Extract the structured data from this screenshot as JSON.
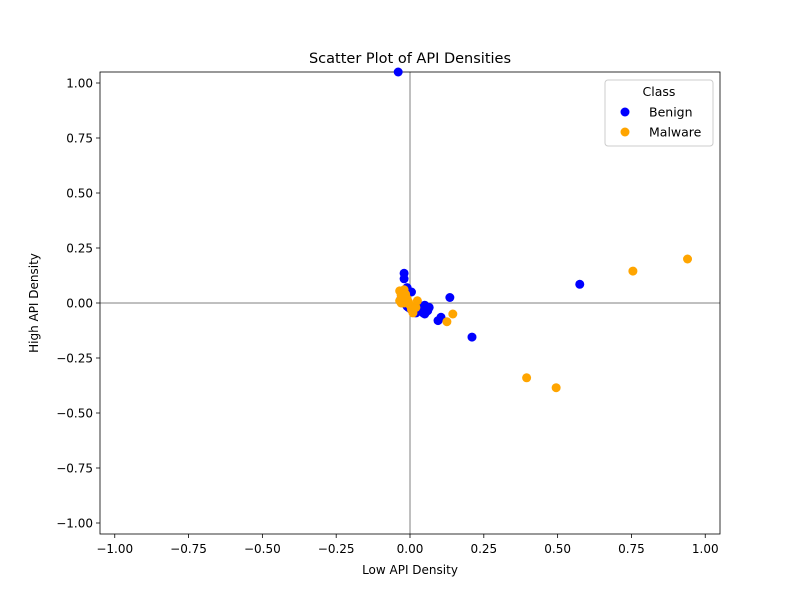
{
  "chart_data": {
    "type": "scatter",
    "title": "Scatter Plot of API Densities",
    "xlabel": "Low API Density",
    "ylabel": "High API Density",
    "xlim": [
      -1.05,
      1.05
    ],
    "ylim": [
      -1.05,
      1.05
    ],
    "xticks": [
      -1.0,
      -0.75,
      -0.5,
      -0.25,
      0.0,
      0.25,
      0.5,
      0.75,
      1.0
    ],
    "yticks": [
      -1.0,
      -0.75,
      -0.5,
      -0.25,
      0.0,
      0.25,
      0.5,
      0.75,
      1.0
    ],
    "xtick_labels": [
      "−1.00",
      "−0.75",
      "−0.50",
      "−0.25",
      "0.00",
      "0.25",
      "0.50",
      "0.75",
      "1.00"
    ],
    "ytick_labels": [
      "−1.00",
      "−0.75",
      "−0.50",
      "−0.25",
      "0.00",
      "0.25",
      "0.50",
      "0.75",
      "1.00"
    ],
    "grid": false,
    "reference_lines": {
      "x": 0,
      "y": 0
    },
    "legend": {
      "title": "Class",
      "position": "top-right"
    },
    "series": [
      {
        "name": "Benign",
        "color": "#0000ff",
        "points": [
          [
            -0.04,
            1.05
          ],
          [
            -0.02,
            0.135
          ],
          [
            -0.02,
            0.11
          ],
          [
            -0.01,
            0.07
          ],
          [
            0.005,
            0.05
          ],
          [
            -0.03,
            0.02
          ],
          [
            -0.02,
            0.01
          ],
          [
            -0.015,
            -0.005
          ],
          [
            -0.01,
            -0.015
          ],
          [
            -0.005,
            -0.02
          ],
          [
            0.0,
            -0.025
          ],
          [
            0.005,
            -0.03
          ],
          [
            0.01,
            -0.035
          ],
          [
            0.015,
            -0.04
          ],
          [
            0.02,
            -0.03
          ],
          [
            0.025,
            -0.025
          ],
          [
            0.03,
            -0.02
          ],
          [
            0.035,
            -0.03
          ],
          [
            0.04,
            -0.04
          ],
          [
            0.045,
            -0.045
          ],
          [
            0.05,
            -0.05
          ],
          [
            0.055,
            -0.04
          ],
          [
            0.06,
            -0.035
          ],
          [
            0.05,
            -0.01
          ],
          [
            0.055,
            -0.02
          ],
          [
            0.065,
            -0.02
          ],
          [
            0.045,
            -0.025
          ],
          [
            0.04,
            -0.015
          ],
          [
            0.03,
            -0.035
          ],
          [
            0.02,
            -0.045
          ],
          [
            0.01,
            -0.02
          ],
          [
            0.095,
            -0.08
          ],
          [
            0.105,
            -0.065
          ],
          [
            0.135,
            0.025
          ],
          [
            0.21,
            -0.155
          ],
          [
            0.575,
            0.085
          ]
        ]
      },
      {
        "name": "Malware",
        "color": "#ffa500",
        "points": [
          [
            -0.035,
            0.055
          ],
          [
            -0.02,
            0.06
          ],
          [
            -0.03,
            0.035
          ],
          [
            -0.035,
            0.01
          ],
          [
            -0.025,
            0.02
          ],
          [
            -0.015,
            0.04
          ],
          [
            -0.01,
            0.02
          ],
          [
            -0.02,
            0.0
          ],
          [
            -0.005,
            0.005
          ],
          [
            0.0,
            -0.01
          ],
          [
            0.005,
            -0.03
          ],
          [
            0.01,
            -0.045
          ],
          [
            0.02,
            -0.02
          ],
          [
            0.025,
            0.01
          ],
          [
            -0.03,
            0.0
          ],
          [
            -0.015,
            0.025
          ],
          [
            0.125,
            -0.085
          ],
          [
            0.145,
            -0.05
          ],
          [
            0.395,
            -0.34
          ],
          [
            0.495,
            -0.385
          ],
          [
            0.755,
            0.145
          ],
          [
            0.94,
            0.2
          ]
        ]
      }
    ]
  }
}
